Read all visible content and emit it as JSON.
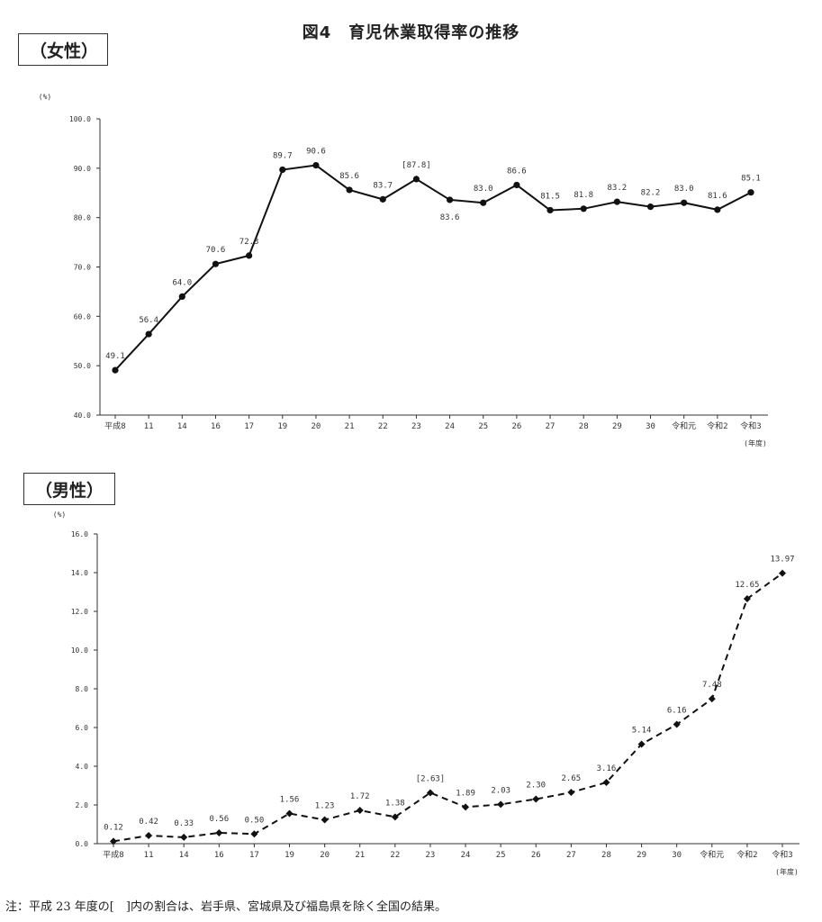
{
  "title": "図4　育児休業取得率の推移",
  "footnote": "注：平成 23 年度の[　]内の割合は、岩手県、宮城県及び福島県を除く全国の結果。",
  "chart_data": [
    {
      "type": "line",
      "panel_label": "（女性）",
      "ylabel": "(%)",
      "xlabel": "(年度)",
      "ylim": [
        40,
        100
      ],
      "yticks": [
        "40.0",
        "50.0",
        "60.0",
        "70.0",
        "80.0",
        "90.0",
        "100.0"
      ],
      "line_style": "solid",
      "marker": "circle",
      "categories": [
        "平成8",
        "11",
        "14",
        "16",
        "17",
        "19",
        "20",
        "21",
        "22",
        "23",
        "24",
        "25",
        "26",
        "27",
        "28",
        "29",
        "30",
        "令和元",
        "令和2",
        "令和3"
      ],
      "values": [
        49.1,
        56.4,
        64.0,
        70.6,
        72.3,
        89.7,
        90.6,
        85.6,
        83.7,
        87.8,
        83.6,
        83.0,
        86.6,
        81.5,
        81.8,
        83.2,
        82.2,
        83.0,
        81.6,
        85.1
      ],
      "labels": [
        "49.1",
        "56.4",
        "64.0",
        "70.6",
        "72.3",
        "89.7",
        "90.6",
        "85.6",
        "83.7",
        "[87.8]",
        "83.6",
        "83.0",
        "86.6",
        "81.5",
        "81.8",
        "83.2",
        "82.2",
        "83.0",
        "81.6",
        "85.1"
      ]
    },
    {
      "type": "line",
      "panel_label": "（男性）",
      "ylabel": "(%)",
      "xlabel": "(年度)",
      "ylim": [
        0,
        16
      ],
      "yticks": [
        "0.0",
        "2.0",
        "4.0",
        "6.0",
        "8.0",
        "10.0",
        "12.0",
        "14.0",
        "16.0"
      ],
      "line_style": "dashed",
      "marker": "diamond",
      "categories": [
        "平成8",
        "11",
        "14",
        "16",
        "17",
        "19",
        "20",
        "21",
        "22",
        "23",
        "24",
        "25",
        "26",
        "27",
        "28",
        "29",
        "30",
        "令和元",
        "令和2",
        "令和3"
      ],
      "values": [
        0.12,
        0.42,
        0.33,
        0.56,
        0.5,
        1.56,
        1.23,
        1.72,
        1.38,
        2.63,
        1.89,
        2.03,
        2.3,
        2.65,
        3.16,
        5.14,
        6.16,
        7.48,
        12.65,
        13.97
      ],
      "labels": [
        "0.12",
        "0.42",
        "0.33",
        "0.56",
        "0.50",
        "1.56",
        "1.23",
        "1.72",
        "1.38",
        "[2.63]",
        "1.89",
        "2.03",
        "2.30",
        "2.65",
        "3.16",
        "5.14",
        "6.16",
        "7.48",
        "12.65",
        "13.97"
      ]
    }
  ]
}
